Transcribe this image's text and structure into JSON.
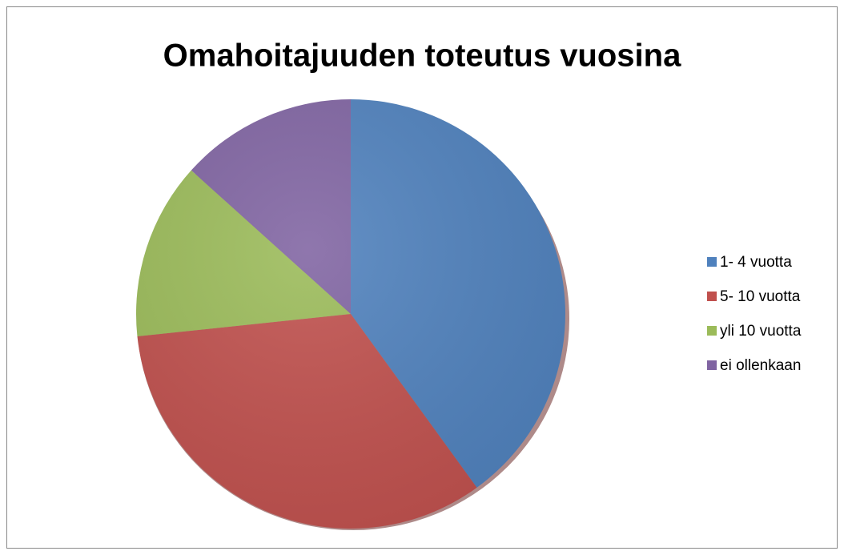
{
  "chart_data": {
    "type": "pie",
    "title": "Omahoitajuuden toteutus vuosina",
    "categories": [
      "1- 4 vuotta",
      "5- 10 vuotta",
      "yli 10 vuotta",
      "ei ollenkaan"
    ],
    "values": [
      6,
      5,
      2,
      2
    ],
    "colors": [
      "#4f81bd",
      "#c0504d",
      "#9bbb59",
      "#8064a2"
    ],
    "legend": "right"
  }
}
